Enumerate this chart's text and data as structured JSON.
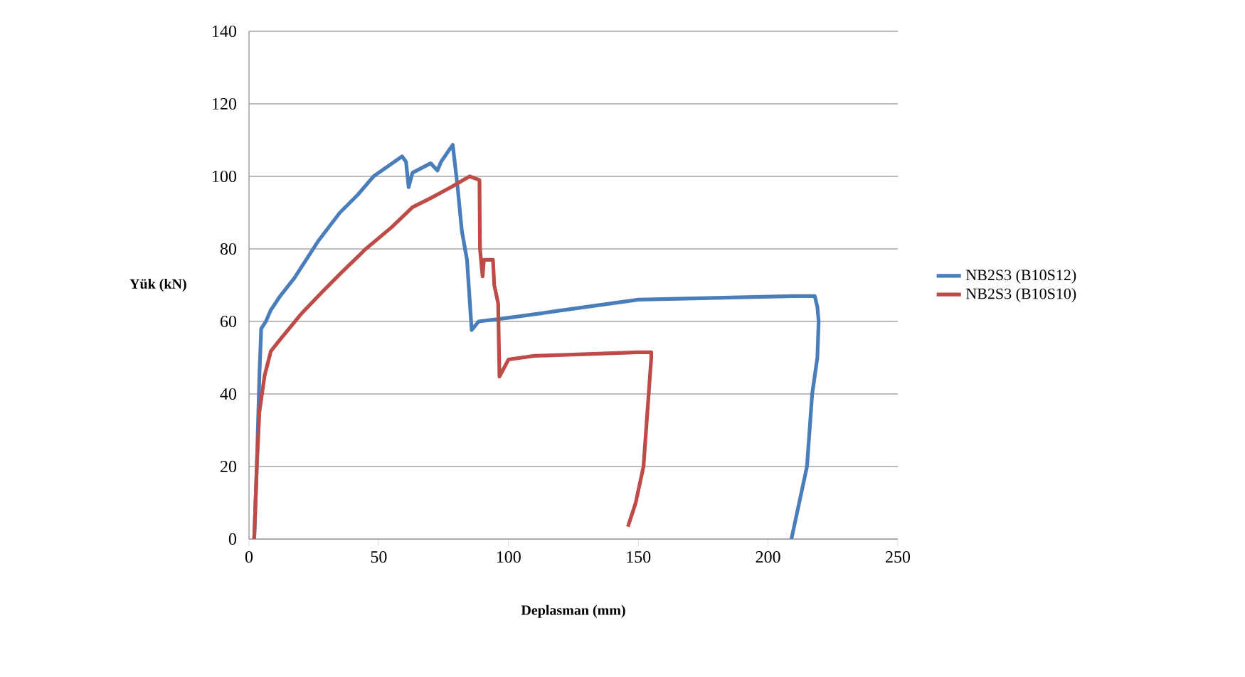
{
  "chart_data": {
    "type": "line",
    "xlabel": "Deplasman (mm)",
    "ylabel": "Yük (kN)",
    "xlim": [
      0,
      250
    ],
    "ylim": [
      0,
      140
    ],
    "xticks": [
      0,
      50,
      100,
      150,
      200,
      250
    ],
    "yticks": [
      0,
      20,
      40,
      60,
      80,
      100,
      120,
      140
    ],
    "grid": "y",
    "legend": "right",
    "series": [
      {
        "name": "NB2S3 (B10S12)",
        "color": "#4a7ebb",
        "x": [
          2,
          3,
          4,
          4.7,
          6.5,
          8.3,
          12,
          17.5,
          26.5,
          35,
          42,
          48,
          54,
          59,
          60.5,
          61.5,
          63,
          70,
          72.6,
          74,
          78.5,
          80.3,
          82,
          84,
          85.8,
          88.5,
          100,
          120,
          150,
          180,
          210,
          218,
          219,
          219.5,
          219,
          217,
          215,
          212,
          209
        ],
        "values": [
          0,
          20,
          45,
          58,
          60,
          63,
          67,
          72,
          82,
          90,
          95,
          100,
          103,
          105.5,
          104,
          97,
          101,
          103.6,
          101.6,
          104,
          108.7,
          97.6,
          85,
          77,
          57.6,
          60,
          61,
          63,
          66,
          66.5,
          67,
          67,
          64,
          60,
          50,
          40,
          20,
          10,
          0
        ]
      },
      {
        "name": "NB2S3 (B10S10)",
        "color": "#be4b48",
        "x": [
          2,
          2.5,
          3,
          4,
          6,
          8.4,
          12,
          20,
          28,
          35.8,
          45,
          55,
          63,
          70,
          77.8,
          85,
          88.8,
          89,
          90,
          90.5,
          94,
          94.5,
          96,
          96.5,
          100,
          110,
          130,
          150,
          155,
          155,
          154,
          152,
          149,
          146
        ],
        "values": [
          0,
          10,
          20,
          35,
          45,
          51.8,
          55,
          62,
          68,
          73.6,
          80,
          86,
          91.5,
          94,
          97,
          100,
          99,
          80,
          72.4,
          77,
          77,
          70,
          65,
          44.8,
          49.5,
          50.5,
          51,
          51.5,
          51.5,
          50,
          40,
          20,
          10,
          3.4
        ]
      }
    ]
  }
}
